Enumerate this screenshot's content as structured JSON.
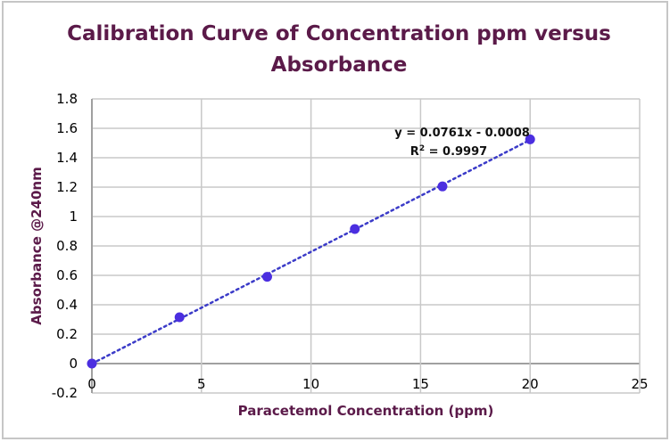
{
  "chart_data": {
    "type": "scatter",
    "title_lines": [
      "Calibration Curve of Concentration ppm versus",
      "Absorbance"
    ],
    "xlabel": "Paracetemol Concentration (ppm)",
    "ylabel": "Absorbance @240nm",
    "xlim": [
      0,
      25
    ],
    "ylim": [
      -0.2,
      1.8
    ],
    "xticks": [
      "0",
      "5",
      "10",
      "15",
      "20",
      "25"
    ],
    "yticks": [
      "-0.2",
      "0",
      "0.2",
      "0.4",
      "0.6",
      "0.8",
      "1",
      "1.2",
      "1.4",
      "1.6",
      "1.8"
    ],
    "grid": true,
    "x": [
      0,
      4,
      8,
      12,
      16,
      20
    ],
    "y": [
      0,
      0.315,
      0.59,
      0.915,
      1.205,
      1.525
    ],
    "trendline": {
      "type": "linear",
      "slope": 0.0761,
      "intercept": -0.0008,
      "style": "dotted"
    },
    "equation": "y = 0.0761x - 0.0008",
    "r_squared_label": "R",
    "r_squared_sup": "2",
    "r_squared_value": " = 0.9997",
    "colors": {
      "points": "#4b2ee0",
      "trendline": "#3b3bc8",
      "title": "#5b1a49",
      "grid": "#c8c8c8"
    }
  }
}
